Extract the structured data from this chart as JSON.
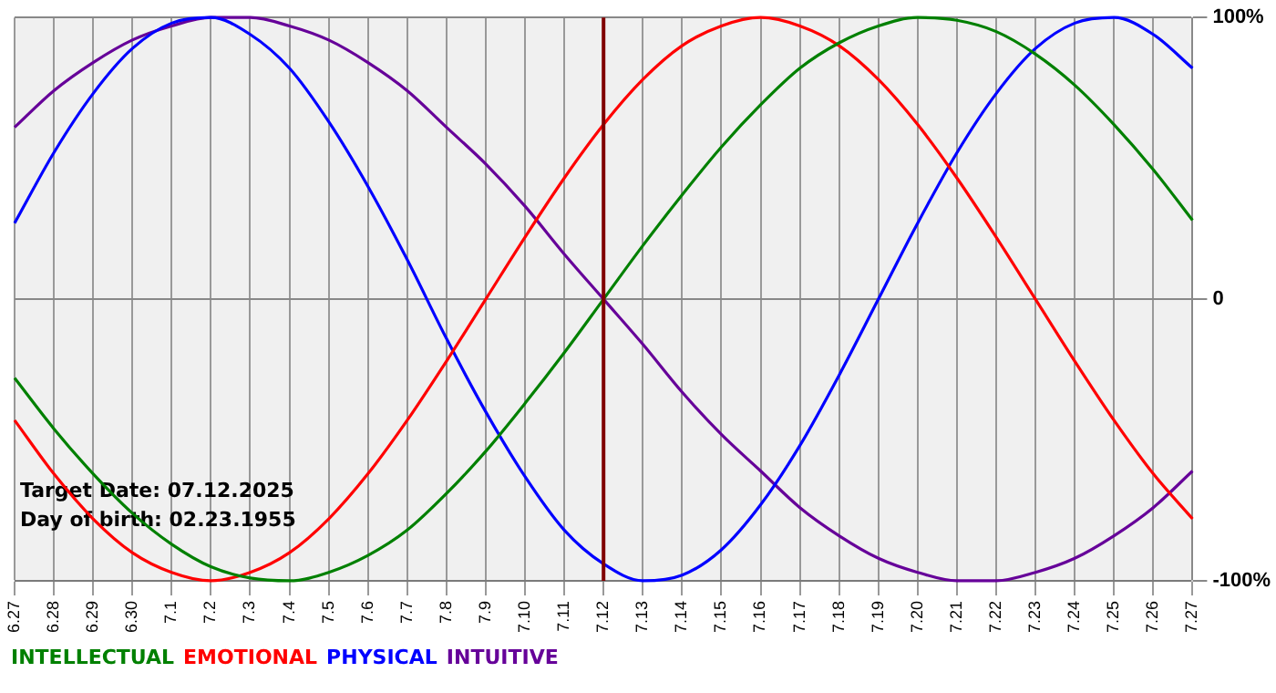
{
  "chart_data": {
    "type": "line",
    "categories": [
      "6.27",
      "6.28",
      "6.29",
      "6.30",
      "7.1",
      "7.2",
      "7.3",
      "7.4",
      "7.5",
      "7.6",
      "7.7",
      "7.8",
      "7.9",
      "7.10",
      "7.11",
      "7.12",
      "7.13",
      "7.14",
      "7.15",
      "7.16",
      "7.17",
      "7.18",
      "7.19",
      "7.20",
      "7.21",
      "7.22",
      "7.23",
      "7.24",
      "7.25",
      "7.26",
      "7.27"
    ],
    "series": [
      {
        "name": "INTELLECTUAL",
        "color": "#008000",
        "values": [
          -28,
          -46,
          -62,
          -76,
          -87,
          -95,
          -99,
          -100,
          -97,
          -91,
          -82,
          -69,
          -54,
          -37,
          -19,
          0,
          19,
          37,
          54,
          69,
          82,
          91,
          97,
          100,
          99,
          95,
          87,
          76,
          62,
          46,
          28
        ]
      },
      {
        "name": "EMOTIONAL",
        "color": "#ff0000",
        "values": [
          -43,
          -62,
          -78,
          -90,
          -97,
          -100,
          -97,
          -90,
          -78,
          -62,
          -43,
          -22,
          0,
          22,
          43,
          62,
          78,
          90,
          97,
          100,
          97,
          90,
          78,
          62,
          43,
          22,
          0,
          -22,
          -43,
          -62,
          -78
        ]
      },
      {
        "name": "PHYSICAL",
        "color": "#0000ff",
        "values": [
          27,
          52,
          73,
          89,
          98,
          100,
          94,
          82,
          63,
          40,
          14,
          -14,
          -40,
          -63,
          -82,
          -94,
          -100,
          -98,
          -89,
          -73,
          -52,
          -27,
          0,
          27,
          52,
          73,
          89,
          98,
          100,
          94,
          82
        ]
      },
      {
        "name": "INTUITIVE",
        "color": "#660099",
        "values": [
          61,
          74,
          84,
          92,
          97,
          100,
          100,
          97,
          92,
          84,
          74,
          61,
          48,
          33,
          16,
          0,
          -16,
          -33,
          -48,
          -61,
          -74,
          -84,
          -92,
          -97,
          -100,
          -100,
          -97,
          -92,
          -84,
          -74,
          -61
        ]
      }
    ],
    "ylim": [
      -100,
      100
    ],
    "yticks": [
      {
        "value": 100,
        "label": "100%"
      },
      0,
      {
        "value": -100,
        "label": "-100%"
      }
    ],
    "ref_lines": [
      {
        "axis": "x",
        "value": "7.12",
        "color": "#800000"
      }
    ],
    "annotations": [
      "Target Date: 07.12.2025",
      "Day of birth: 02.23.1955"
    ],
    "grid": true,
    "legend": "bottom left",
    "marker": "none",
    "line_style": "solid"
  }
}
